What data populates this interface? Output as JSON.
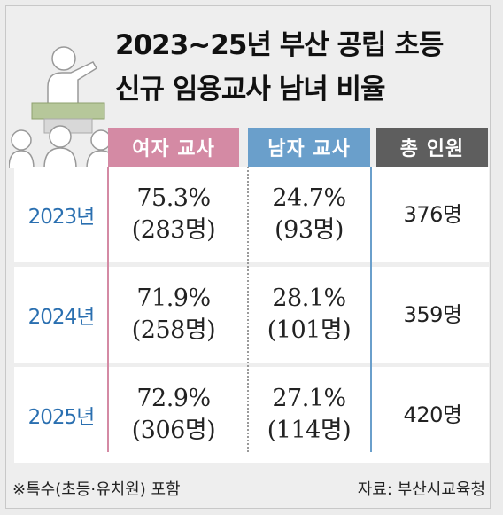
{
  "title_lines": [
    "2023~25년 부산 공립 초등",
    "신규 임용교사 남녀 비율"
  ],
  "headers": {
    "female": "여자 교사",
    "male": "남자 교사",
    "total": "총 인원"
  },
  "colors": {
    "female": "#d48aa4",
    "male": "#6a9fcb",
    "total": "#5e5e5e",
    "year": "#2a6fb0"
  },
  "rows": [
    {
      "year": "2023년",
      "female_pct": "75.3%",
      "female_cnt": "(283명)",
      "male_pct": "24.7%",
      "male_cnt": "(93명)",
      "total": "376명"
    },
    {
      "year": "2024년",
      "female_pct": "71.9%",
      "female_cnt": "(258명)",
      "male_pct": "28.1%",
      "male_cnt": "(101명)",
      "total": "359명"
    },
    {
      "year": "2025년",
      "female_pct": "72.9%",
      "female_cnt": "(306명)",
      "male_pct": "27.1%",
      "male_cnt": "(114명)",
      "total": "420명"
    }
  ],
  "footnote": "※특수(초등·유치원) 포함",
  "source": "자료: 부산시교육청",
  "chart_data": {
    "type": "table",
    "columns": [
      "여자 교사",
      "남자 교사",
      "총 인원"
    ],
    "categories": [
      "2023년",
      "2024년",
      "2025년"
    ],
    "series": [
      {
        "name": "여자 교사",
        "values": [
          75.3,
          71.9,
          72.9
        ],
        "counts": [
          283,
          258,
          306
        ]
      },
      {
        "name": "남자 교사",
        "values": [
          24.7,
          28.1,
          27.1
        ],
        "counts": [
          93,
          101,
          114
        ]
      },
      {
        "name": "총 인원",
        "values": [
          376,
          359,
          420
        ]
      }
    ]
  }
}
